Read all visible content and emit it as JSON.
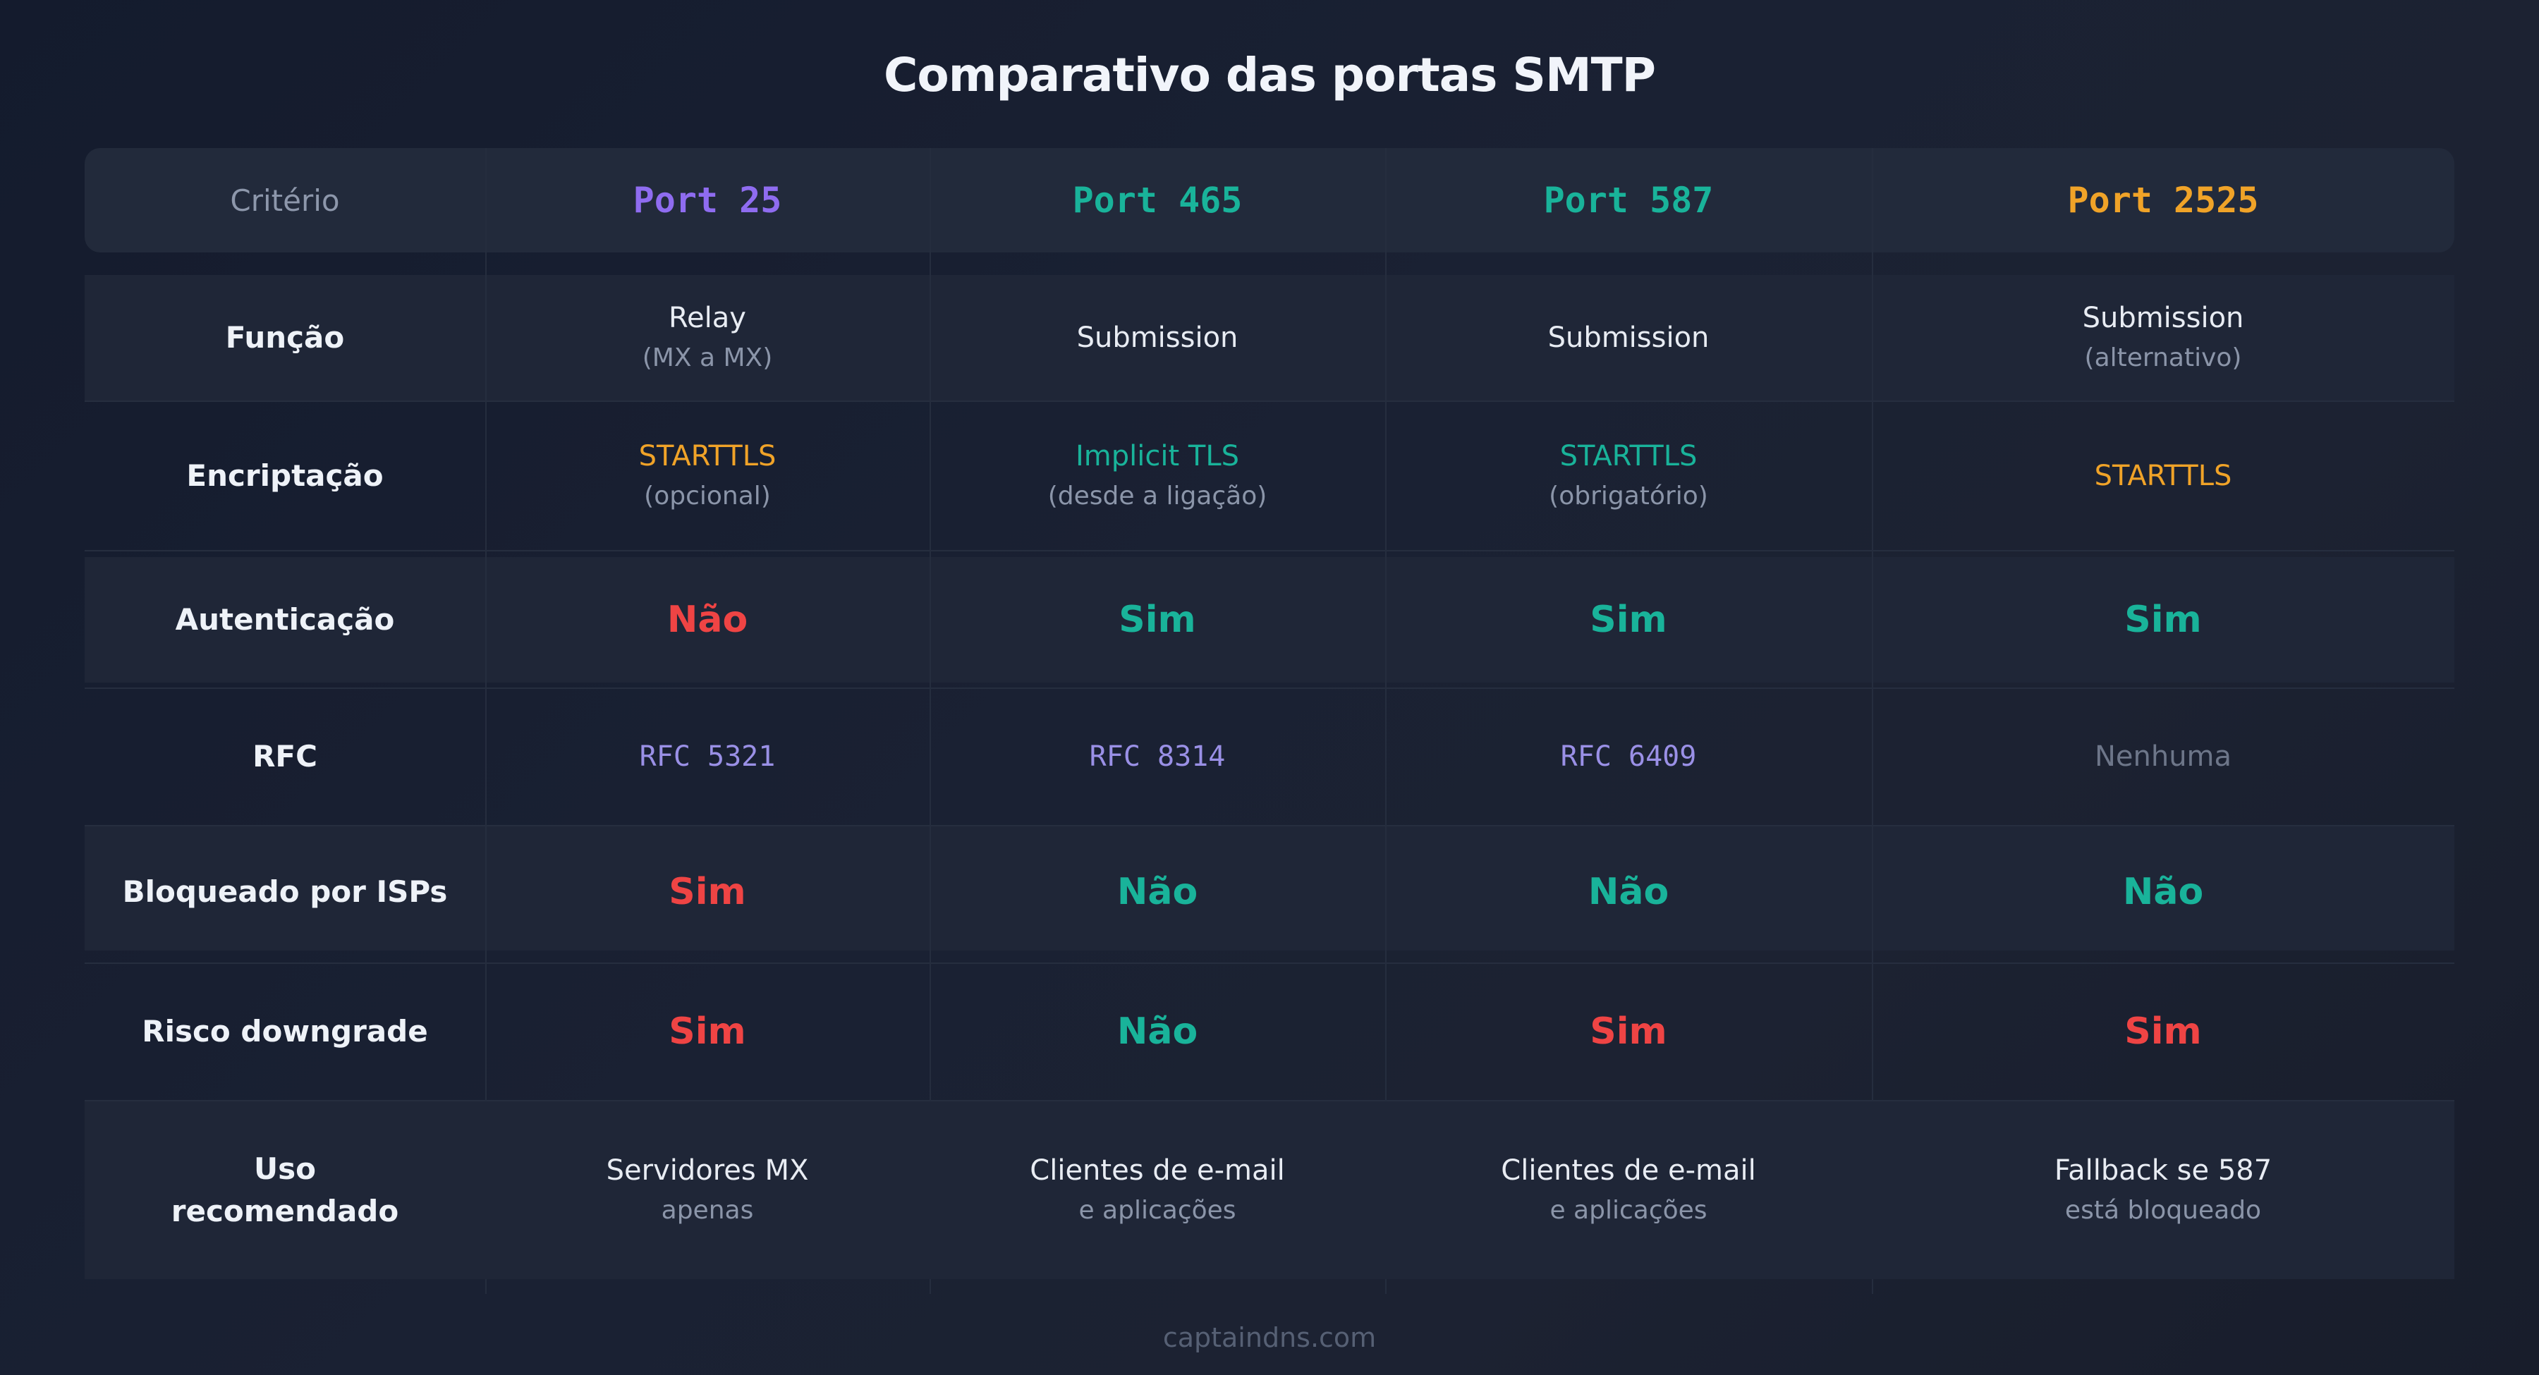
{
  "title": "Comparativo das portas SMTP",
  "colors": {
    "purple": "#8f6cf0",
    "teal": "#19b39a",
    "orange": "#f0a328",
    "red": "#ef4444",
    "rfc": "#9a90e6",
    "muted": "#6d7689"
  },
  "header": {
    "criterio": "Critério",
    "ports": [
      "Port 25",
      "Port 465",
      "Port 587",
      "Port 2525"
    ],
    "port_colors": [
      "purple",
      "teal",
      "teal",
      "orange"
    ]
  },
  "rows": {
    "funcao": {
      "label": "Função",
      "cells": [
        {
          "main": "Relay",
          "sub": "(MX a MX)"
        },
        {
          "main": "Submission",
          "sub": ""
        },
        {
          "main": "Submission",
          "sub": ""
        },
        {
          "main": "Submission",
          "sub": "(alternativo)"
        }
      ]
    },
    "encriptacao": {
      "label": "Encriptação",
      "cells": [
        {
          "main": "STARTTLS",
          "sub": "(opcional)",
          "color": "orange"
        },
        {
          "main": "Implicit TLS",
          "sub": "(desde a ligação)",
          "color": "teal"
        },
        {
          "main": "STARTTLS",
          "sub": "(obrigatório)",
          "color": "teal"
        },
        {
          "main": "STARTTLS",
          "sub": "",
          "color": "orange"
        }
      ]
    },
    "autenticacao": {
      "label": "Autenticação",
      "cells": [
        {
          "value": "Não",
          "color": "red"
        },
        {
          "value": "Sim",
          "color": "teal"
        },
        {
          "value": "Sim",
          "color": "teal"
        },
        {
          "value": "Sim",
          "color": "teal"
        }
      ]
    },
    "rfc": {
      "label": "RFC",
      "cells": [
        {
          "value": "RFC 5321",
          "color": "rfc"
        },
        {
          "value": "RFC 8314",
          "color": "rfc"
        },
        {
          "value": "RFC 6409",
          "color": "rfc"
        },
        {
          "value": "Nenhuma",
          "color": "muted"
        }
      ]
    },
    "bloqueado": {
      "label": "Bloqueado por ISPs",
      "cells": [
        {
          "value": "Sim",
          "color": "red"
        },
        {
          "value": "Não",
          "color": "teal"
        },
        {
          "value": "Não",
          "color": "teal"
        },
        {
          "value": "Não",
          "color": "teal"
        }
      ]
    },
    "risco": {
      "label": "Risco downgrade",
      "cells": [
        {
          "value": "Sim",
          "color": "red"
        },
        {
          "value": "Não",
          "color": "teal"
        },
        {
          "value": "Sim",
          "color": "red"
        },
        {
          "value": "Sim",
          "color": "red"
        }
      ]
    },
    "uso": {
      "label_line1": "Uso",
      "label_line2": "recomendado",
      "cells": [
        {
          "main": "Servidores MX",
          "sub": "apenas"
        },
        {
          "main": "Clientes de e-mail",
          "sub": "e aplicações"
        },
        {
          "main": "Clientes de e-mail",
          "sub": "e aplicações"
        },
        {
          "main": "Fallback se 587",
          "sub": "está bloqueado"
        }
      ]
    }
  },
  "footer": "captaindns.com"
}
